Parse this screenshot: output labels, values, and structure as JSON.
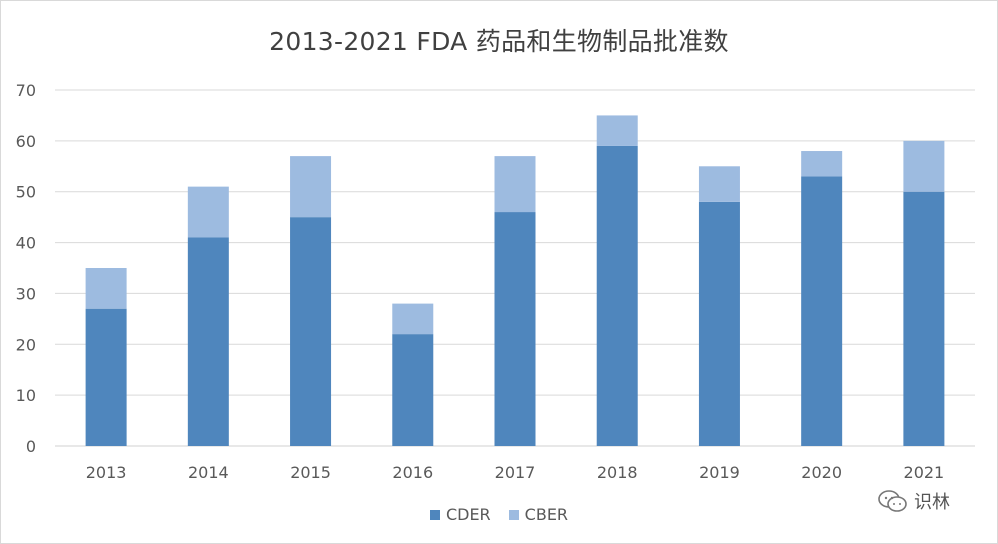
{
  "chart_data": {
    "type": "bar",
    "stacked": true,
    "title": "2013-2021 FDA 药品和生物制品批准数",
    "categories": [
      "2013",
      "2014",
      "2015",
      "2016",
      "2017",
      "2018",
      "2019",
      "2020",
      "2021"
    ],
    "series": [
      {
        "name": "CDER",
        "color": "#4f86bd",
        "values": [
          27,
          41,
          45,
          22,
          46,
          59,
          48,
          53,
          50
        ]
      },
      {
        "name": "CBER",
        "color": "#9dbbe0",
        "values": [
          8,
          10,
          12,
          6,
          11,
          6,
          7,
          5,
          10
        ]
      }
    ],
    "ylim": [
      0,
      70
    ],
    "yticks": [
      0,
      10,
      20,
      30,
      40,
      50,
      60,
      70
    ],
    "grid": true,
    "legend_position": "bottom"
  },
  "watermark": {
    "text": "识林",
    "icon": "wechat-icon"
  }
}
